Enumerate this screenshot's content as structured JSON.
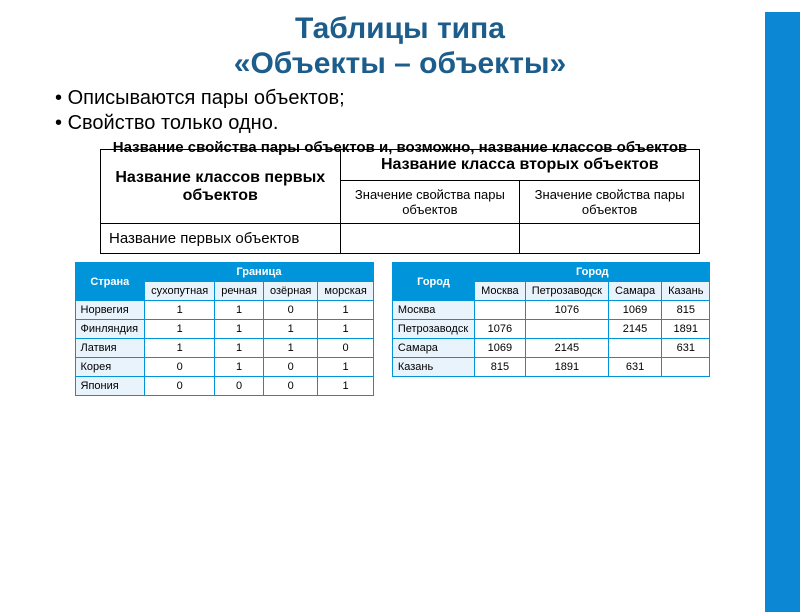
{
  "title_line1": "Таблицы типа",
  "title_line2": "«Объекты – объекты»",
  "bullets": {
    "b1": "Описываются пары объектов;",
    "b2": "Свойство только одно."
  },
  "subtitle": "Название свойства пары объектов и, возможно, название классов объектов",
  "schema": {
    "h1": "Название классов первых объектов",
    "h2": "Название класса вторых объектов",
    "c1": "Значение свойства пары объектов",
    "c2": "Значение свойства пары объектов",
    "r1": "Название первых объектов"
  },
  "table1": {
    "header_country": "Страна",
    "header_border": "Граница",
    "sub": {
      "s1": "сухопутная",
      "s2": "речная",
      "s3": "озёрная",
      "s4": "морская"
    },
    "rows": {
      "r1": {
        "name": "Норвегия",
        "v1": "1",
        "v2": "1",
        "v3": "0",
        "v4": "1"
      },
      "r2": {
        "name": "Финляндия",
        "v1": "1",
        "v2": "1",
        "v3": "1",
        "v4": "1"
      },
      "r3": {
        "name": "Латвия",
        "v1": "1",
        "v2": "1",
        "v3": "1",
        "v4": "0"
      },
      "r4": {
        "name": "Корея",
        "v1": "0",
        "v2": "1",
        "v3": "0",
        "v4": "1"
      },
      "r5": {
        "name": "Япония",
        "v1": "0",
        "v2": "0",
        "v3": "0",
        "v4": "1"
      }
    }
  },
  "table2": {
    "header_city_l": "Город",
    "header_city_t": "Город",
    "sub": {
      "s1": "Москва",
      "s2": "Петрозаводск",
      "s3": "Самара",
      "s4": "Казань"
    },
    "rows": {
      "r1": {
        "name": "Москва",
        "v1": "",
        "v2": "1076",
        "v3": "1069",
        "v4": "815"
      },
      "r2": {
        "name": "Петрозаводск",
        "v1": "1076",
        "v2": "",
        "v3": "2145",
        "v4": "1891"
      },
      "r3": {
        "name": "Самара",
        "v1": "1069",
        "v2": "2145",
        "v3": "",
        "v4": "631"
      },
      "r4": {
        "name": "Казань",
        "v1": "815",
        "v2": "1891",
        "v3": "631",
        "v4": ""
      }
    }
  },
  "colors": {
    "accent_blue": "#0095da",
    "title_blue": "#1d5d8c",
    "sub_bg": "#e8f3fb"
  }
}
